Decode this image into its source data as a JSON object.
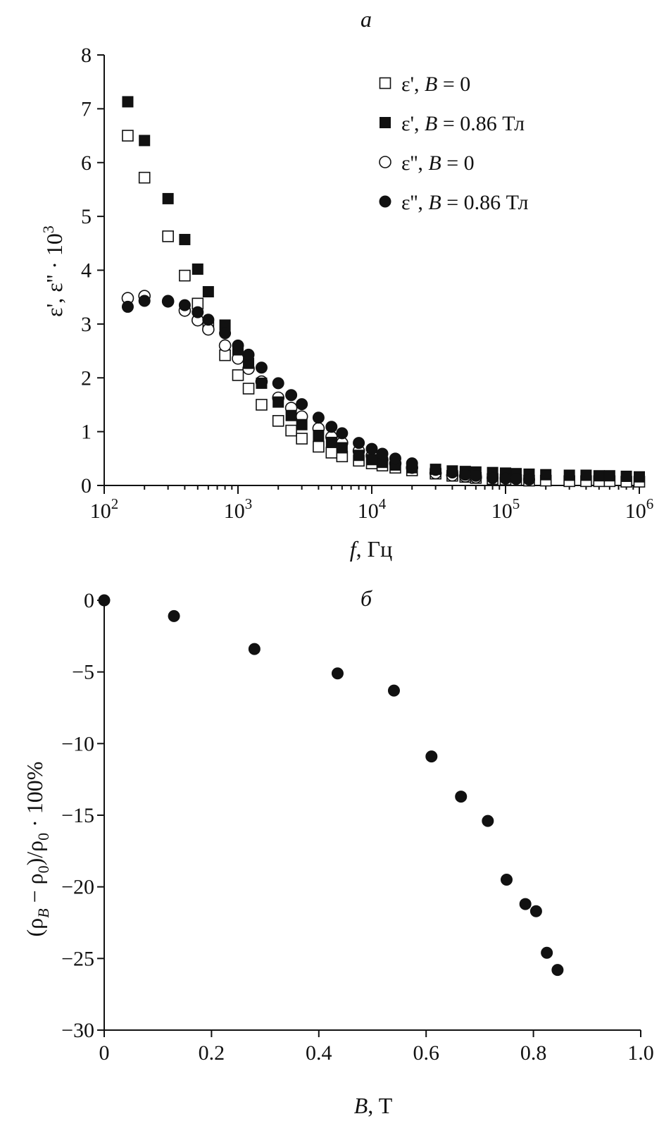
{
  "chart_data": [
    {
      "panel": "a",
      "type": "scatter",
      "title": "",
      "xlabel": "f, Гц",
      "ylabel": "ε', ε'' · 10³",
      "x_scale": "log",
      "xlim": [
        100,
        1000000
      ],
      "ylim": [
        0,
        8
      ],
      "x_ticks": [
        {
          "value": 100,
          "base": "10",
          "exp": "2"
        },
        {
          "value": 1000,
          "base": "10",
          "exp": "3"
        },
        {
          "value": 10000,
          "base": "10",
          "exp": "4"
        },
        {
          "value": 100000,
          "base": "10",
          "exp": "5"
        },
        {
          "value": 1000000,
          "base": "10",
          "exp": "6"
        }
      ],
      "y_ticks": [
        "0",
        "1",
        "2",
        "3",
        "4",
        "5",
        "6",
        "7",
        "8"
      ],
      "legend_position": "top-right",
      "series": [
        {
          "name": "ε', B = 0",
          "label_parts": [
            "ε', ",
            "B",
            " = 0"
          ],
          "marker": "open-square",
          "x": [
            150,
            200,
            300,
            400,
            500,
            600,
            800,
            1000,
            1200,
            1500,
            2000,
            2500,
            3000,
            4000,
            5000,
            6000,
            8000,
            10000,
            12000,
            15000,
            20000,
            30000,
            40000,
            50000,
            60000,
            80000,
            100000,
            120000,
            150000,
            200000,
            300000,
            400000,
            500000,
            600000,
            800000,
            1000000
          ],
          "y": [
            6.5,
            5.72,
            4.63,
            3.9,
            3.38,
            3.0,
            2.42,
            2.05,
            1.8,
            1.5,
            1.2,
            1.02,
            0.87,
            0.72,
            0.61,
            0.54,
            0.46,
            0.41,
            0.37,
            0.33,
            0.28,
            0.22,
            0.18,
            0.16,
            0.14,
            0.12,
            0.11,
            0.1,
            0.09,
            0.09,
            0.08,
            0.08,
            0.08,
            0.08,
            0.07,
            0.07
          ]
        },
        {
          "name": "ε', B = 0.86 Тл",
          "label_parts": [
            "ε', ",
            "B",
            " = 0.86 Тл"
          ],
          "marker": "filled-square",
          "x": [
            150,
            200,
            300,
            400,
            500,
            600,
            800,
            1000,
            1200,
            1500,
            2000,
            2500,
            3000,
            4000,
            5000,
            6000,
            8000,
            10000,
            12000,
            15000,
            20000,
            30000,
            40000,
            50000,
            60000,
            80000,
            100000,
            120000,
            150000,
            200000,
            300000,
            400000,
            500000,
            600000,
            800000,
            1000000
          ],
          "y": [
            7.13,
            6.41,
            5.33,
            4.57,
            4.02,
            3.6,
            2.98,
            2.52,
            2.27,
            1.9,
            1.55,
            1.3,
            1.13,
            0.93,
            0.8,
            0.7,
            0.56,
            0.48,
            0.43,
            0.38,
            0.33,
            0.3,
            0.27,
            0.26,
            0.25,
            0.24,
            0.23,
            0.22,
            0.21,
            0.2,
            0.19,
            0.19,
            0.18,
            0.18,
            0.17,
            0.16
          ]
        },
        {
          "name": "ε'', B = 0",
          "label_parts": [
            "ε'', ",
            "B",
            " = 0"
          ],
          "marker": "open-circle",
          "x": [
            150,
            200,
            300,
            400,
            500,
            600,
            800,
            1000,
            1200,
            1500,
            2000,
            2500,
            3000,
            4000,
            5000,
            6000,
            8000,
            10000,
            12000,
            15000,
            20000,
            30000,
            40000,
            50000,
            60000
          ],
          "y": [
            3.48,
            3.52,
            3.42,
            3.25,
            3.07,
            2.9,
            2.6,
            2.36,
            2.17,
            1.93,
            1.63,
            1.44,
            1.28,
            1.06,
            0.9,
            0.79,
            0.64,
            0.55,
            0.48,
            0.41,
            0.33,
            0.23,
            0.19,
            0.17,
            0.15
          ]
        },
        {
          "name": "ε'', B = 0.86 Тл",
          "label_parts": [
            "ε'', ",
            "B",
            " = 0.86 Тл"
          ],
          "marker": "filled-circle",
          "x": [
            150,
            200,
            300,
            400,
            500,
            600,
            800,
            1000,
            1200,
            1500,
            2000,
            2500,
            3000,
            4000,
            5000,
            6000,
            8000,
            10000,
            12000,
            15000,
            20000,
            30000,
            40000,
            50000,
            60000,
            80000,
            100000,
            120000,
            150000
          ],
          "y": [
            3.32,
            3.43,
            3.43,
            3.35,
            3.22,
            3.08,
            2.83,
            2.6,
            2.43,
            2.19,
            1.9,
            1.68,
            1.51,
            1.26,
            1.09,
            0.97,
            0.79,
            0.68,
            0.59,
            0.5,
            0.41,
            0.29,
            0.24,
            0.2,
            0.18,
            0.14,
            0.13,
            0.12,
            0.11
          ]
        }
      ]
    },
    {
      "panel": "б",
      "type": "scatter",
      "title": "",
      "xlabel": "B, T",
      "xlabel_parts": [
        "B",
        ", T"
      ],
      "ylabel": "(ρB − ρ0)/ρ0 · 100%",
      "xlim": [
        0,
        1.0
      ],
      "ylim": [
        -30,
        0
      ],
      "x_ticks": [
        "0",
        "0.2",
        "0.4",
        "0.6",
        "0.8",
        "1.0"
      ],
      "y_ticks": [
        "0",
        "−5",
        "−10",
        "−15",
        "−20",
        "−25",
        "−30"
      ],
      "series": [
        {
          "marker": "filled-circle",
          "x": [
            0.0,
            0.13,
            0.28,
            0.435,
            0.54,
            0.61,
            0.665,
            0.715,
            0.75,
            0.785,
            0.805,
            0.825,
            0.845
          ],
          "y": [
            0.0,
            -1.1,
            -3.4,
            -5.1,
            -6.3,
            -10.9,
            -13.7,
            -15.4,
            -19.5,
            -21.2,
            -21.7,
            -24.6,
            -25.8
          ]
        }
      ]
    }
  ]
}
